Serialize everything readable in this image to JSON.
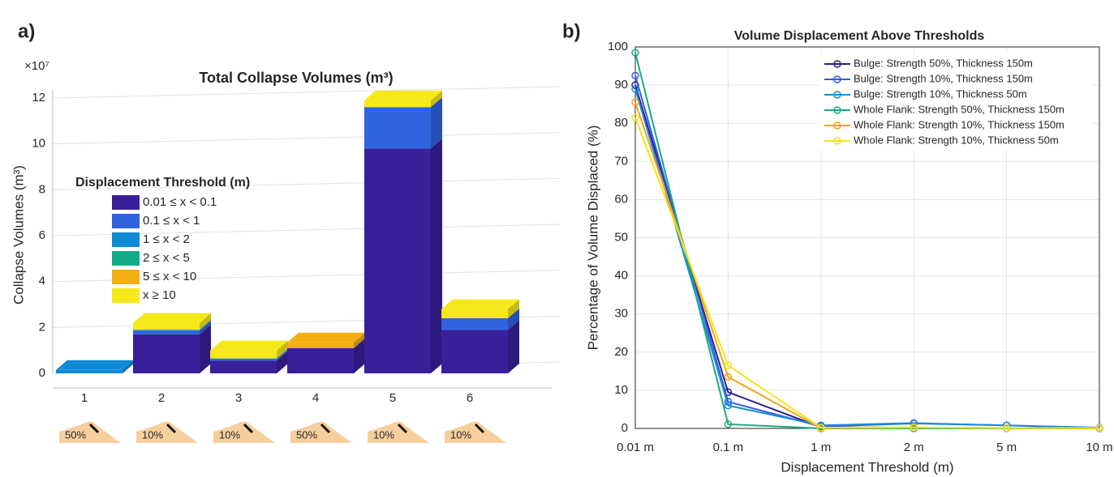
{
  "panel_labels": [
    "a)",
    "b)"
  ],
  "chart_data": [
    {
      "type": "bar3d",
      "title": "Total Collapse Volumes (m³)",
      "y_multiplier": "×10⁷",
      "ylabel": "Collapse Volumes (m³)",
      "legend_title": "Displacement Threshold (m)",
      "categories": [
        "1",
        "2",
        "3",
        "4",
        "5",
        "6"
      ],
      "icon_labels": [
        "50%",
        "10%",
        "10%",
        "50%",
        "10%",
        "10%"
      ],
      "ylim": [
        0,
        12
      ],
      "yticks": [
        0,
        2,
        4,
        6,
        8,
        10,
        12
      ],
      "grid": true,
      "series": [
        {
          "name": "0.01 ≤ x < 0.1",
          "color": "#3a1f9b",
          "values": [
            0,
            1.7,
            0.55,
            1.1,
            9.8,
            1.9
          ]
        },
        {
          "name": "0.1 ≤ x < 1",
          "color": "#2f63e0",
          "values": [
            0,
            0.15,
            0.05,
            0,
            1.8,
            0.5
          ]
        },
        {
          "name": "1 ≤ x < 2",
          "color": "#0f8ad6",
          "values": [
            0.15,
            0.05,
            0.05,
            0,
            0,
            0
          ]
        },
        {
          "name": "2 ≤ x < 5",
          "color": "#14ab8a",
          "values": [
            0,
            0,
            0,
            0,
            0,
            0
          ]
        },
        {
          "name": "5 ≤ x < 10",
          "color": "#f5ae11",
          "values": [
            0,
            0,
            0,
            0.25,
            0,
            0
          ]
        },
        {
          "name": "x ≥ 10",
          "color": "#f7e81c",
          "values": [
            0,
            0.3,
            0.35,
            0,
            0.3,
            0.4
          ]
        }
      ]
    },
    {
      "type": "line",
      "title": "Volume Displacement Above Thresholds",
      "xlabel": "Displacement Threshold (m)",
      "ylabel": "Percentage of Volume Displaced (%)",
      "categories": [
        "0.01 m",
        "0.1 m",
        "1 m",
        "2 m",
        "5 m",
        "10 m"
      ],
      "ylim": [
        0,
        100
      ],
      "yticks": [
        0,
        10,
        20,
        30,
        40,
        50,
        60,
        70,
        80,
        90,
        100
      ],
      "grid": true,
      "series": [
        {
          "name": "Bulge: Strength 50%, Thickness 150m",
          "color": "#2e1d8c",
          "values": [
            90,
            9.5,
            0.3,
            0.2,
            0.1,
            0
          ]
        },
        {
          "name": "Bulge: Strength 10%, Thickness 150m",
          "color": "#2f5ce6",
          "values": [
            92.5,
            7,
            0.5,
            1.3,
            0.8,
            0
          ]
        },
        {
          "name": "Bulge: Strength 10%, Thickness 50m",
          "color": "#1a8cd8",
          "values": [
            89,
            6,
            0.8,
            1.4,
            0.8,
            0.2
          ]
        },
        {
          "name": "Whole Flank: Strength 50%, Thickness 150m",
          "color": "#1aa882",
          "values": [
            98.5,
            1.1,
            0,
            0,
            0,
            0
          ]
        },
        {
          "name": "Whole Flank: Strength 10%, Thickness 150m",
          "color": "#f0a420",
          "values": [
            85.5,
            13.5,
            0.1,
            0.2,
            0.1,
            0
          ]
        },
        {
          "name": "Whole Flank: Strength 10%, Thickness 50m",
          "color": "#f5e41a",
          "values": [
            81.5,
            16.5,
            0.2,
            0.3,
            0.1,
            0.1
          ]
        }
      ]
    }
  ]
}
